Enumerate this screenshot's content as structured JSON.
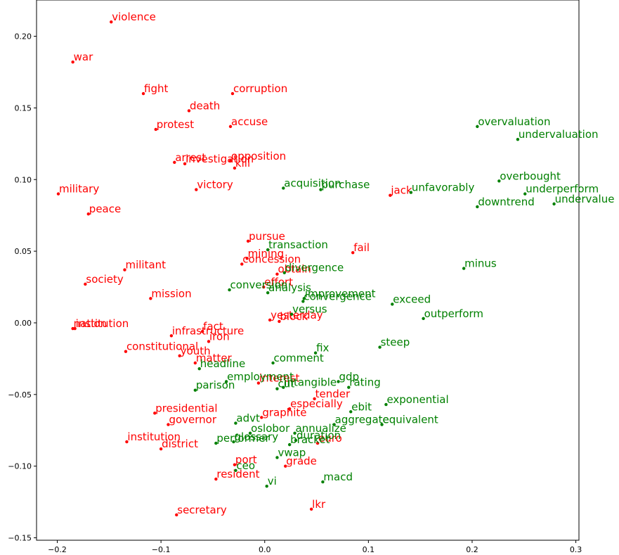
{
  "chart_data": {
    "type": "scatter",
    "xlim": [
      -0.22,
      0.303
    ],
    "ylim": [
      -0.1517,
      0.2253
    ],
    "xticks": [
      {
        "value": -0.2,
        "label": "−0.2"
      },
      {
        "value": -0.1,
        "label": "−0.1"
      },
      {
        "value": 0,
        "label": "0.0"
      },
      0.1,
      0.2,
      0.3
    ],
    "yticks": [
      {
        "value": -0.15,
        "label": "−0.15"
      },
      {
        "value": -0.1,
        "label": "−0.10"
      },
      {
        "value": -0.05,
        "label": "−0.05"
      },
      {
        "value": 0,
        "label": "0.00"
      },
      0.05,
      {
        "value": 0.1,
        "label": "0.10"
      },
      0.15,
      {
        "value": 0.2,
        "label": "0.20"
      }
    ],
    "series": [
      {
        "color": "#ff0000",
        "labels": [
          "violence",
          "war",
          "fight",
          "corruption",
          "death",
          "protest",
          "accuse",
          "arrest",
          "investigation",
          "opposition",
          "kill",
          "military",
          "victory",
          "peace",
          "jack",
          "pursue",
          "fail",
          "mining",
          "concession",
          "militant",
          "obtain",
          "effort",
          "society",
          "mission",
          "yesterday",
          "block",
          "institution",
          "nation",
          "infrastructure",
          "fact",
          "iron",
          "constitutional",
          "youth",
          "matter",
          "interest",
          "tender",
          "especially",
          "presidential",
          "graphite",
          "governor",
          "institution",
          "district",
          "euro",
          "port",
          "grade",
          "resident",
          "lkr",
          "secretary"
        ],
        "x": [
          -0.148,
          -0.185,
          -0.117,
          -0.031,
          -0.073,
          -0.105,
          -0.033,
          -0.087,
          -0.077,
          -0.033,
          -0.029,
          -0.199,
          -0.066,
          -0.17,
          0.121,
          -0.016,
          0.085,
          -0.017,
          -0.022,
          -0.135,
          0.012,
          -0.001,
          -0.173,
          -0.11,
          0.005,
          0.014,
          -0.183,
          -0.185,
          -0.09,
          -0.06,
          -0.054,
          -0.134,
          -0.082,
          -0.067,
          -0.006,
          0.048,
          0.024,
          -0.106,
          -0.003,
          -0.093,
          -0.133,
          -0.1,
          0.051,
          -0.029,
          0.02,
          -0.047,
          0.045,
          -0.085
        ],
        "values": [
          0.21,
          0.182,
          0.16,
          0.16,
          0.148,
          0.135,
          0.137,
          0.112,
          0.111,
          0.113,
          0.108,
          0.09,
          0.093,
          0.076,
          0.089,
          0.057,
          0.049,
          0.045,
          0.041,
          0.037,
          0.034,
          0.025,
          0.027,
          0.017,
          0.002,
          0.001,
          -0.004,
          -0.004,
          -0.009,
          -0.006,
          -0.013,
          -0.02,
          -0.023,
          -0.028,
          -0.042,
          -0.053,
          -0.06,
          -0.063,
          -0.066,
          -0.071,
          -0.083,
          -0.088,
          -0.084,
          -0.099,
          -0.1,
          -0.109,
          -0.13,
          -0.134
        ]
      },
      {
        "color": "#008000",
        "labels": [
          "overvaluation",
          "undervaluation",
          "overbought",
          "underperform",
          "undervalue",
          "downtrend",
          "unfavorably",
          "acquisition",
          "purchase",
          "transaction",
          "minus",
          "divergence",
          "conversion",
          "analysis",
          "improvement",
          "convergence",
          "exceed",
          "versus",
          "outperform",
          "steep",
          "fix",
          "comment",
          "headline",
          "employment",
          "gdp",
          "rating",
          "intangible",
          "cut",
          "parison",
          "exponential",
          "ebit",
          "equivalent",
          "aggregate",
          "advt",
          "oslobor",
          "annualize",
          "duration",
          "glossary",
          "performer",
          "bracket",
          "vwap",
          "ceo",
          "vi",
          "macd"
        ],
        "x": [
          0.205,
          0.244,
          0.226,
          0.251,
          0.279,
          0.205,
          0.141,
          0.018,
          0.054,
          0.003,
          0.192,
          0.019,
          -0.034,
          0.003,
          0.038,
          0.037,
          0.123,
          0.026,
          0.153,
          0.111,
          0.049,
          0.008,
          -0.063,
          -0.037,
          0.071,
          0.081,
          0.018,
          0.012,
          -0.067,
          0.117,
          0.083,
          0.113,
          0.067,
          -0.028,
          -0.014,
          0.029,
          0.03,
          -0.03,
          -0.047,
          0.024,
          0.012,
          -0.028,
          0.002,
          0.056
        ],
        "values": [
          0.137,
          0.128,
          0.099,
          0.09,
          0.083,
          0.081,
          0.091,
          0.094,
          0.093,
          0.051,
          0.038,
          0.035,
          0.023,
          0.021,
          0.017,
          0.015,
          0.013,
          0.006,
          0.003,
          -0.017,
          -0.021,
          -0.028,
          -0.032,
          -0.041,
          -0.041,
          -0.045,
          -0.045,
          -0.046,
          -0.047,
          -0.057,
          -0.062,
          -0.071,
          -0.071,
          -0.07,
          -0.077,
          -0.077,
          -0.082,
          -0.083,
          -0.084,
          -0.085,
          -0.094,
          -0.103,
          -0.114,
          -0.111
        ]
      }
    ]
  }
}
